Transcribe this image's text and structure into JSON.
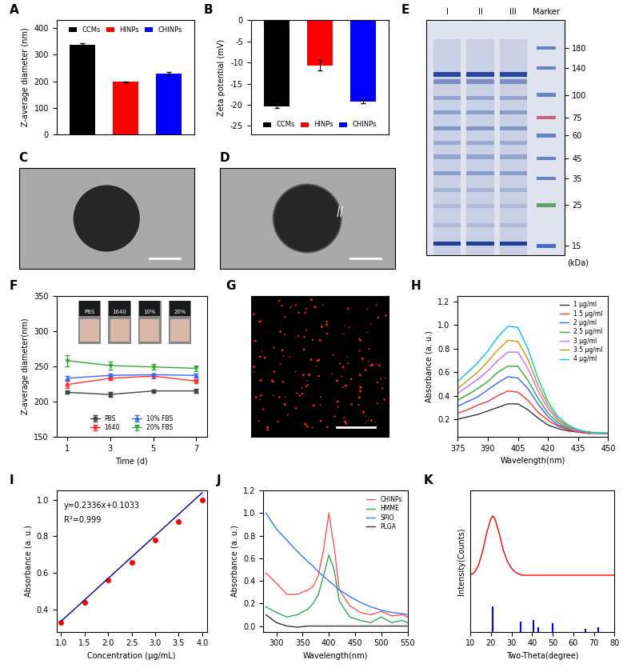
{
  "chart_data": [
    {
      "panel": "A",
      "type": "bar",
      "ylabel": "Z-average diameter (nm)",
      "categories": [
        "CCMs",
        "HINPs",
        "CHINPs"
      ],
      "values": [
        338,
        198,
        229
      ],
      "errors": [
        5,
        2,
        5
      ],
      "colors": [
        "#000000",
        "#ff0000",
        "#0000ff"
      ],
      "ylim": [
        0,
        430
      ],
      "yticks": [
        0,
        100,
        200,
        300,
        400
      ],
      "legend": "upper center",
      "tick_labels": "y"
    },
    {
      "panel": "B",
      "type": "bar",
      "ylabel": "Zeta potential (mV)",
      "categories": [
        "CCMs",
        "HINPs",
        "CHINPs"
      ],
      "values": [
        -20.3,
        -10.7,
        -19.2
      ],
      "errors": [
        0.4,
        1.2,
        0.5
      ],
      "colors": [
        "#000000",
        "#ff0000",
        "#0000ff"
      ],
      "ylim": [
        -27,
        0
      ],
      "yticks": [
        -25,
        -20,
        -15,
        -10,
        -5,
        0
      ],
      "legend": "lower center",
      "tick_labels": "y"
    },
    {
      "panel": "C",
      "type": "tem_image"
    },
    {
      "panel": "D",
      "type": "tem_shell_image"
    },
    {
      "panel": "E",
      "type": "gel",
      "lane_labels": [
        "I",
        "II",
        "III",
        "Marker"
      ],
      "marker_kDa": [
        180,
        140,
        100,
        75,
        60,
        45,
        35,
        25,
        15
      ],
      "unit_label": "(kDa)"
    },
    {
      "panel": "F",
      "type": "line",
      "xlabel": "Time (d)",
      "ylabel": "Z-average diameter(nm)",
      "x": [
        1,
        3,
        5,
        7
      ],
      "xlim": [
        0.5,
        7.5
      ],
      "xticks": [
        1,
        3,
        5,
        7
      ],
      "ylim": [
        150,
        350
      ],
      "yticks": [
        150,
        200,
        250,
        300,
        350
      ],
      "legend": "lower center",
      "inset_labels": [
        "PBS",
        "1640",
        "10%",
        "20%"
      ],
      "series": [
        {
          "name": "PBS",
          "color": "#444444",
          "marker": "square",
          "values": [
            213,
            210,
            215,
            215
          ],
          "errors": [
            2,
            3,
            2,
            3
          ]
        },
        {
          "name": "1640",
          "color": "#ff3333",
          "marker": "circle",
          "values": [
            224,
            233,
            236,
            229
          ],
          "errors": [
            5,
            3,
            3,
            3
          ]
        },
        {
          "name": "10% FBS",
          "color": "#3366ff",
          "marker": "triangle",
          "values": [
            233,
            237,
            238,
            237
          ],
          "errors": [
            3,
            3,
            2,
            3
          ]
        },
        {
          "name": "20% FBS",
          "color": "#33aa33",
          "marker": "triangle_down",
          "values": [
            258,
            251,
            249,
            247
          ],
          "errors": [
            8,
            6,
            4,
            4
          ]
        }
      ]
    },
    {
      "panel": "G",
      "type": "fluorescence_image"
    },
    {
      "panel": "H",
      "type": "line",
      "xlabel": "Wavelength(nm)",
      "ylabel": "Absorbance (a. u.)",
      "x": [
        375,
        380,
        385,
        390,
        395,
        400,
        405,
        410,
        415,
        420,
        425,
        430,
        435,
        440,
        445,
        450
      ],
      "xlim": [
        375,
        450
      ],
      "xticks": [
        375,
        390,
        405,
        420,
        435,
        450
      ],
      "ylim": [
        0.05,
        1.25
      ],
      "yticks": [
        0.2,
        0.4,
        0.6,
        0.8,
        1.0,
        1.2
      ],
      "legend": "upper right",
      "series": [
        {
          "name": "1 μg/ml",
          "color": "#333333",
          "values": [
            0.2,
            0.22,
            0.24,
            0.27,
            0.3,
            0.33,
            0.33,
            0.28,
            0.21,
            0.15,
            0.12,
            0.1,
            0.09,
            0.08,
            0.08,
            0.08
          ]
        },
        {
          "name": "1.5 μg/ml",
          "color": "#ff3333",
          "values": [
            0.25,
            0.28,
            0.32,
            0.35,
            0.4,
            0.44,
            0.43,
            0.36,
            0.26,
            0.19,
            0.14,
            0.11,
            0.09,
            0.08,
            0.08,
            0.08
          ]
        },
        {
          "name": "2 μg/ml",
          "color": "#3366ff",
          "values": [
            0.31,
            0.35,
            0.39,
            0.45,
            0.51,
            0.56,
            0.55,
            0.46,
            0.33,
            0.22,
            0.15,
            0.12,
            0.1,
            0.09,
            0.08,
            0.08
          ]
        },
        {
          "name": "2.5 μg/ml",
          "color": "#33aa33",
          "values": [
            0.36,
            0.41,
            0.46,
            0.52,
            0.6,
            0.65,
            0.65,
            0.53,
            0.38,
            0.25,
            0.17,
            0.12,
            0.1,
            0.09,
            0.08,
            0.08
          ]
        },
        {
          "name": "3 μg/ml",
          "color": "#cc66ff",
          "values": [
            0.42,
            0.48,
            0.54,
            0.61,
            0.7,
            0.77,
            0.77,
            0.63,
            0.44,
            0.29,
            0.19,
            0.13,
            0.1,
            0.09,
            0.08,
            0.08
          ]
        },
        {
          "name": "3.5 μg/ml",
          "color": "#cc9900",
          "values": [
            0.46,
            0.53,
            0.6,
            0.69,
            0.79,
            0.87,
            0.86,
            0.71,
            0.49,
            0.32,
            0.2,
            0.14,
            0.11,
            0.09,
            0.08,
            0.08
          ]
        },
        {
          "name": "4 μg/ml",
          "color": "#00cccc",
          "values": [
            0.52,
            0.6,
            0.68,
            0.78,
            0.9,
            0.99,
            0.98,
            0.8,
            0.55,
            0.35,
            0.22,
            0.15,
            0.11,
            0.09,
            0.085,
            0.08
          ]
        }
      ]
    },
    {
      "panel": "I",
      "type": "scatter",
      "xlabel": "Concentration (μg/mL)",
      "ylabel": "Absorbance (a. u.)",
      "xlim": [
        0.9,
        4.1
      ],
      "xticks": [
        1.0,
        1.5,
        2.0,
        2.5,
        3.0,
        3.5,
        4.0
      ],
      "ylim": [
        0.28,
        1.05
      ],
      "yticks": [
        0.4,
        0.6,
        0.8,
        1.0
      ],
      "annotations": [
        "y=0.2336x+0.1033",
        "R²=0.999"
      ],
      "series": [
        {
          "type": "scatter",
          "color": "#ff0000",
          "marker": "circle",
          "x": [
            1,
            1.5,
            2,
            2.5,
            3,
            3.5,
            4
          ],
          "values": [
            0.33,
            0.44,
            0.56,
            0.66,
            0.78,
            0.88,
            1.0
          ]
        },
        {
          "type": "line",
          "color": "#00008b",
          "marker": "none",
          "x": [
            1,
            4
          ],
          "values": [
            0.337,
            1.038
          ]
        }
      ]
    },
    {
      "panel": "J",
      "type": "line",
      "xlabel": "Wavelength(nm)",
      "ylabel": "Absorbance (a. u.)",
      "x": [
        280,
        300,
        320,
        340,
        360,
        370,
        380,
        390,
        400,
        410,
        420,
        440,
        460,
        480,
        500,
        520,
        540,
        550
      ],
      "xlim": [
        275,
        550
      ],
      "xticks": [
        300,
        350,
        400,
        450,
        500,
        550
      ],
      "ylim": [
        -0.05,
        1.2
      ],
      "yticks": [
        0.0,
        0.2,
        0.4,
        0.6,
        0.8,
        1.0,
        1.2
      ],
      "legend": "upper right",
      "series": [
        {
          "name": "CHINPs",
          "color": "#ff5555",
          "values": [
            0.47,
            0.38,
            0.28,
            0.28,
            0.32,
            0.35,
            0.45,
            0.68,
            1.0,
            0.7,
            0.32,
            0.18,
            0.12,
            0.1,
            0.13,
            0.09,
            0.1,
            0.08
          ]
        },
        {
          "name": "HMME",
          "color": "#33aa55",
          "values": [
            0.17,
            0.12,
            0.08,
            0.1,
            0.15,
            0.2,
            0.28,
            0.45,
            0.63,
            0.5,
            0.22,
            0.08,
            0.05,
            0.03,
            0.08,
            0.03,
            0.05,
            0.03
          ]
        },
        {
          "name": "SPIO",
          "color": "#3377ff",
          "values": [
            1.0,
            0.86,
            0.76,
            0.66,
            0.57,
            0.53,
            0.48,
            0.44,
            0.4,
            0.36,
            0.32,
            0.26,
            0.21,
            0.17,
            0.14,
            0.12,
            0.11,
            0.1
          ]
        },
        {
          "name": "PLGA",
          "color": "#333333",
          "values": [
            0.1,
            0.03,
            0.0,
            -0.01,
            0.0,
            0.0,
            0.0,
            0.0,
            0.0,
            0.0,
            0.0,
            0.0,
            0.0,
            0.0,
            0.0,
            0.0,
            0.0,
            0.0
          ]
        }
      ]
    },
    {
      "panel": "K",
      "type": "line",
      "xlabel": "Two-Theta(degree)",
      "ylabel": "Intensity(Counts)",
      "xlim": [
        10,
        80
      ],
      "xticks": [
        10,
        20,
        30,
        40,
        50,
        60,
        70,
        80
      ],
      "ylim": [
        0,
        100
      ],
      "tick_labels": "x",
      "series": [
        {
          "type": "line",
          "color": "#ff0000",
          "x": [
            10,
            12,
            14,
            16,
            18,
            20,
            21,
            22,
            24,
            26,
            28,
            30,
            32,
            35,
            40,
            50,
            60,
            70,
            80
          ],
          "values": [
            40,
            42,
            47,
            57,
            70,
            80,
            82,
            80,
            70,
            58,
            50,
            45,
            42,
            40,
            40,
            40,
            40,
            40,
            40
          ]
        },
        {
          "type": "stem",
          "color": "#0000ff",
          "x": [
            20.8,
            34.4,
            40.8,
            43,
            50,
            66,
            72
          ],
          "values": [
            18,
            7,
            8,
            3,
            6,
            2,
            3
          ]
        }
      ]
    }
  ]
}
